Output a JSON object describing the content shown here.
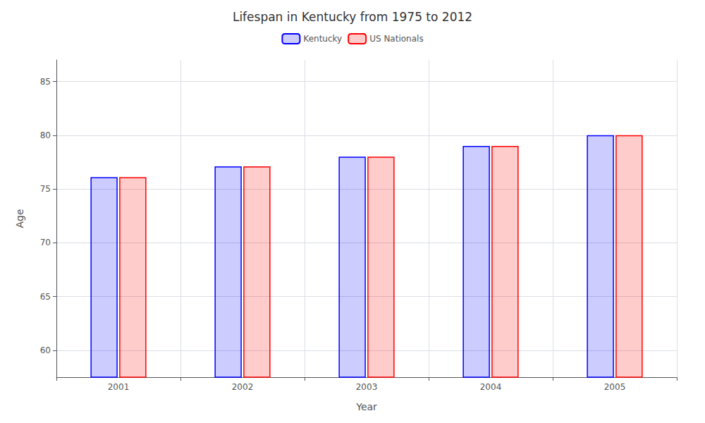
{
  "chart_data": {
    "type": "bar",
    "title": "Lifespan in Kentucky from 1975 to 2012",
    "x_label": "Year",
    "y_label": "Age",
    "categories": [
      "2001",
      "2002",
      "2003",
      "2004",
      "2005"
    ],
    "series": [
      {
        "name": "Kentucky",
        "color": "#0000ff",
        "values": [
          76.1,
          77.1,
          78.0,
          79.0,
          80.0
        ]
      },
      {
        "name": "US Nationals",
        "color": "#ff0000",
        "values": [
          76.1,
          77.1,
          78.0,
          79.0,
          80.0
        ]
      }
    ],
    "ylim": [
      57.5,
      87
    ],
    "yticks": [
      60,
      65,
      70,
      75,
      80,
      85
    ],
    "grid": true,
    "legend": "top"
  }
}
